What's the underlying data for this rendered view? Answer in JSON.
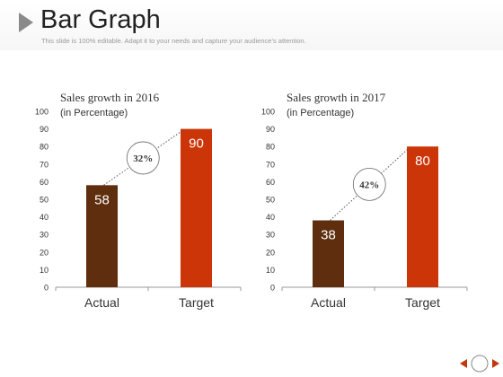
{
  "header": {
    "title": "Bar Graph",
    "subtitle": "This slide is 100% editable. Adapt it to your needs and capture your audience’s attention."
  },
  "colors": {
    "actual": "#5e2e0e",
    "target": "#cc3508",
    "axis": "#999999"
  },
  "chart_data": [
    {
      "type": "bar",
      "title": "Sales growth in 2016",
      "subtitle": "(in Percentage)",
      "categories": [
        "Actual",
        "Target"
      ],
      "values": [
        58,
        90
      ],
      "ylim": [
        0,
        100
      ],
      "yticks": [
        0,
        10,
        20,
        30,
        40,
        50,
        60,
        70,
        80,
        90,
        100
      ],
      "annotation": "32%",
      "grid": false
    },
    {
      "type": "bar",
      "title": "Sales growth in 2017",
      "subtitle": "(in Percentage)",
      "categories": [
        "Actual",
        "Target"
      ],
      "values": [
        38,
        80
      ],
      "ylim": [
        0,
        100
      ],
      "yticks": [
        0,
        10,
        20,
        30,
        40,
        50,
        60,
        70,
        80,
        90,
        100
      ],
      "annotation": "42%",
      "grid": false
    }
  ],
  "nav": {
    "prev_icon": "triangle-left-icon",
    "center_icon": "circle-icon",
    "next_icon": "triangle-right-icon"
  }
}
